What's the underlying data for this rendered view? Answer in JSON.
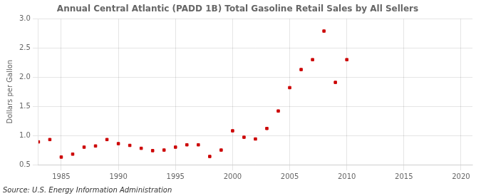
{
  "chart_data": {
    "type": "scatter",
    "title": "Annual Central Atlantic (PADD 1B) Total Gasoline Retail Sales by All Sellers",
    "ylabel": "Dollars per Gallon",
    "annotation": "Source: U.S. Energy Information Administration",
    "x": [
      1983,
      1984,
      1985,
      1986,
      1987,
      1988,
      1989,
      1990,
      1991,
      1992,
      1993,
      1994,
      1995,
      1996,
      1997,
      1998,
      1999,
      2000,
      2001,
      2002,
      2003,
      2004,
      2005,
      2006,
      2007,
      2008,
      2009,
      2010
    ],
    "values": [
      0.89,
      0.93,
      0.63,
      0.68,
      0.8,
      0.82,
      0.93,
      0.86,
      0.83,
      0.78,
      0.74,
      0.75,
      0.8,
      0.84,
      0.84,
      0.64,
      0.75,
      1.08,
      0.97,
      0.94,
      1.12,
      1.42,
      1.82,
      2.13,
      2.3,
      2.79,
      1.91,
      2.3
    ],
    "color": "#cc0000",
    "marker": "square",
    "xlim": [
      1983,
      2021
    ],
    "xticks": [
      1985,
      1990,
      1995,
      2000,
      2005,
      2010,
      2015,
      2020
    ],
    "ylim": [
      0.5,
      3.0
    ],
    "yticks": [
      0.5,
      {
        "value": 1.0,
        "label": "1.0"
      },
      1.5,
      {
        "value": 2.0,
        "label": "2.0"
      },
      2.5,
      {
        "value": 3.0,
        "label": "3.0"
      }
    ],
    "grid": true
  }
}
